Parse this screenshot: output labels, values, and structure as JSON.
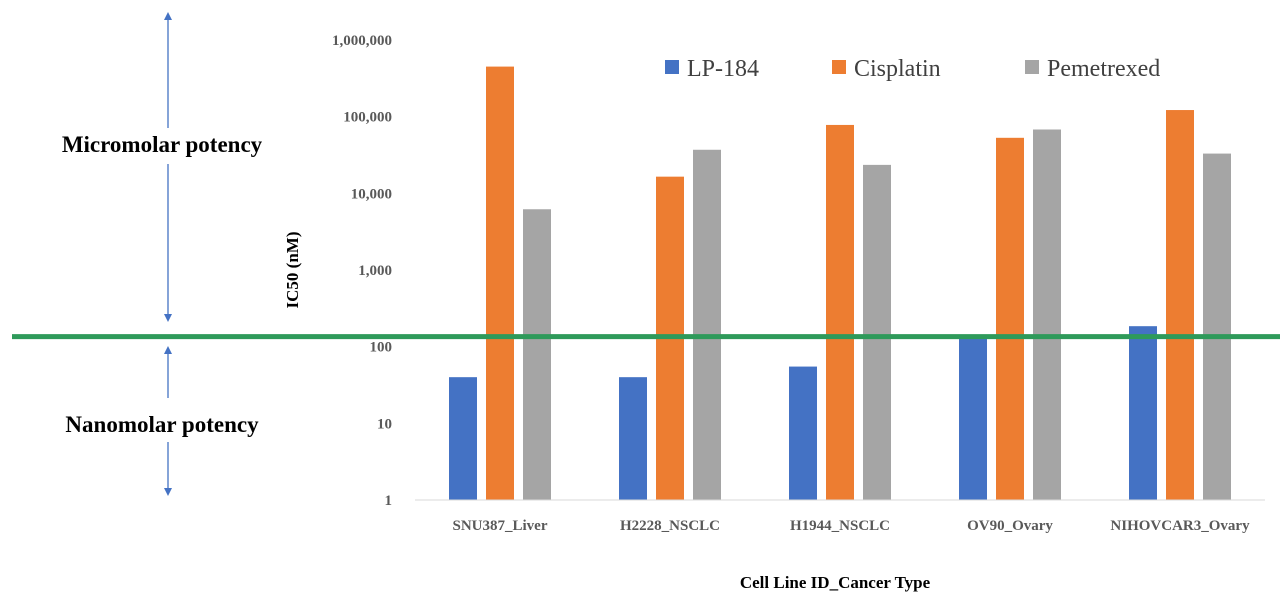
{
  "chart_data": {
    "type": "bar",
    "ylabel": "IC50 (nM)",
    "xlabel": "Cell Line ID_Cancer Type",
    "yscale": "log",
    "ylim": [
      1,
      1000000
    ],
    "yticks": [
      1,
      10,
      100,
      1000,
      10000,
      100000,
      1000000
    ],
    "ytick_labels": [
      "1",
      "10",
      "100",
      "1,000",
      "10,000",
      "100,000",
      "1,000,000"
    ],
    "categories": [
      "SNU387_Liver",
      "H2228_NSCLC",
      "H1944_NSCLC",
      "OV90_Ovary",
      "NIHOVCAR3_Ovary"
    ],
    "series": [
      {
        "name": "LP-184",
        "color": "#4472C4",
        "values": [
          40,
          40,
          55,
          135,
          185
        ]
      },
      {
        "name": "Cisplatin",
        "color": "#ED7D31",
        "values": [
          450000,
          16500,
          78000,
          53000,
          122000
        ]
      },
      {
        "name": "Pemetrexed",
        "color": "#A5A5A5",
        "values": [
          6200,
          37000,
          23500,
          68000,
          33000
        ]
      }
    ],
    "legend_position": "top",
    "grid": false,
    "threshold_line": {
      "value": 135,
      "color": "#2E9A5A"
    },
    "annotations": {
      "upper": "Micromolar potency",
      "lower": "Nanomolar potency",
      "arrow_color": "#4472C4"
    }
  }
}
